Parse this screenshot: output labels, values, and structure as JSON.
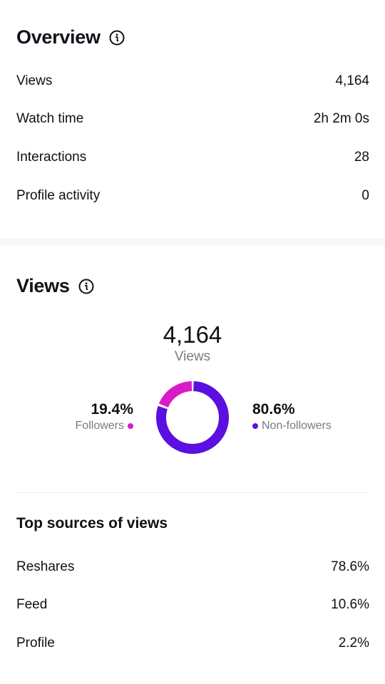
{
  "overview": {
    "title": "Overview",
    "rows": [
      {
        "label": "Views",
        "value": "4,164"
      },
      {
        "label": "Watch time",
        "value": "2h 2m 0s"
      },
      {
        "label": "Interactions",
        "value": "28"
      },
      {
        "label": "Profile activity",
        "value": "0"
      }
    ]
  },
  "views": {
    "title": "Views",
    "total": "4,164",
    "total_label": "Views",
    "followers": {
      "pct": "19.4%",
      "label": "Followers",
      "fraction": 0.194,
      "color": "#d91bc7"
    },
    "non_followers": {
      "pct": "80.6%",
      "label": "Non-followers",
      "fraction": 0.806,
      "color": "#5b0fe0"
    }
  },
  "top_sources": {
    "title": "Top sources of views",
    "rows": [
      {
        "label": "Reshares",
        "value": "78.6%"
      },
      {
        "label": "Feed",
        "value": "10.6%"
      },
      {
        "label": "Profile",
        "value": "2.2%"
      }
    ]
  },
  "icons": {
    "info": "info-circle-icon"
  }
}
